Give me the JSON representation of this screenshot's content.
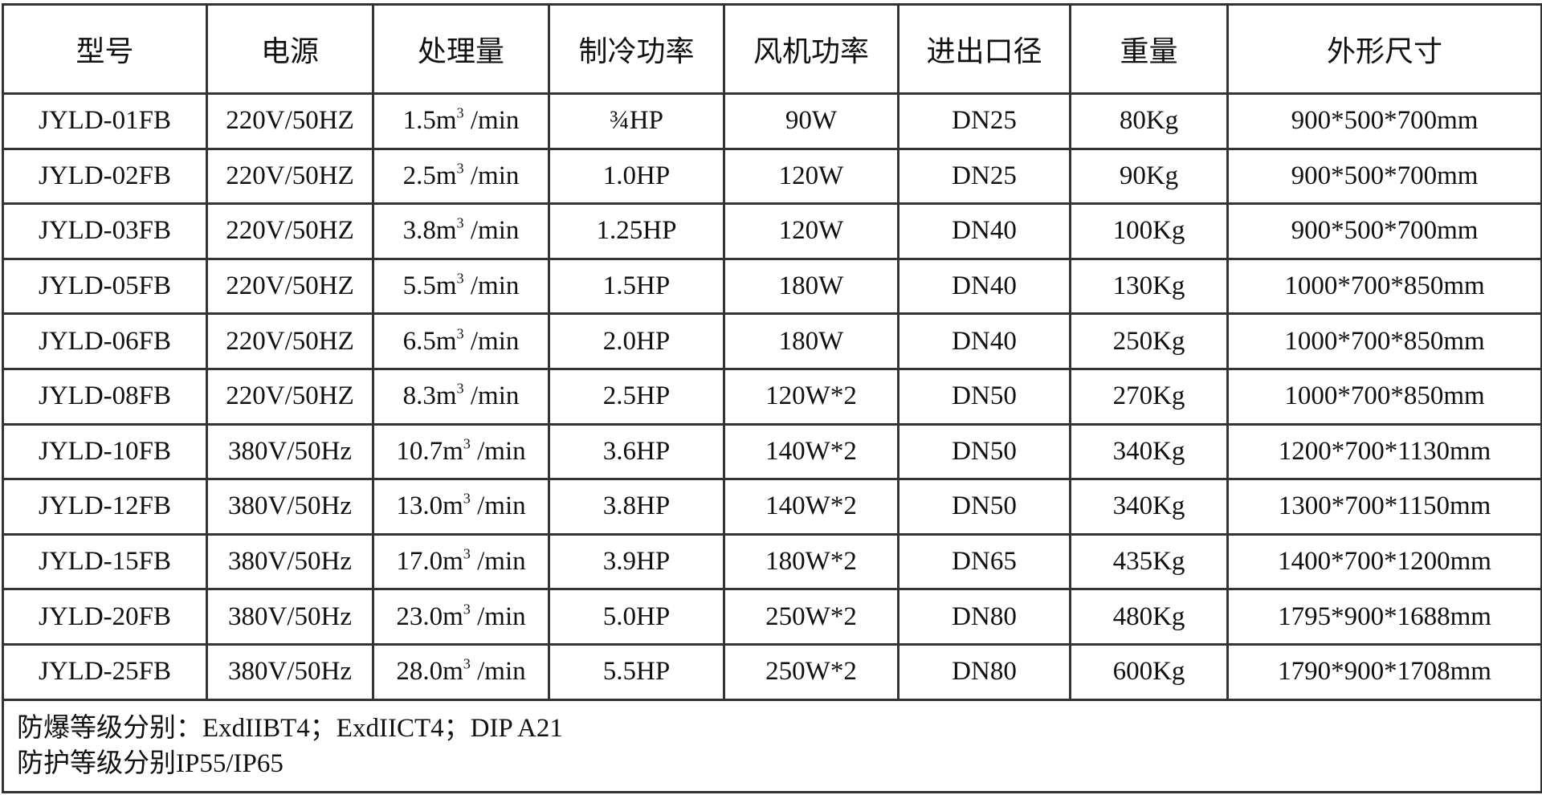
{
  "table": {
    "headers": [
      "型号",
      "电源",
      "处理量",
      "制冷功率",
      "风机功率",
      "进出口径",
      "重量",
      "外形尺寸"
    ],
    "rows": [
      [
        "JYLD-01FB",
        "220V/50HZ",
        "1.5m³/min",
        "¾HP",
        "90W",
        "DN25",
        "80Kg",
        "900*500*700mm"
      ],
      [
        "JYLD-02FB",
        "220V/50HZ",
        "2.5m³/min",
        "1.0HP",
        "120W",
        "DN25",
        "90Kg",
        "900*500*700mm"
      ],
      [
        "JYLD-03FB",
        "220V/50HZ",
        "3.8m³/min",
        "1.25HP",
        "120W",
        "DN40",
        "100Kg",
        "900*500*700mm"
      ],
      [
        "JYLD-05FB",
        "220V/50HZ",
        "5.5m³/min",
        "1.5HP",
        "180W",
        "DN40",
        "130Kg",
        "1000*700*850mm"
      ],
      [
        "JYLD-06FB",
        "220V/50HZ",
        "6.5m³/min",
        "2.0HP",
        "180W",
        "DN40",
        "250Kg",
        "1000*700*850mm"
      ],
      [
        "JYLD-08FB",
        "220V/50HZ",
        "8.3m³/min",
        "2.5HP",
        "120W*2",
        "DN50",
        "270Kg",
        "1000*700*850mm"
      ],
      [
        "JYLD-10FB",
        "380V/50Hz",
        "10.7m³/min",
        "3.6HP",
        "140W*2",
        "DN50",
        "340Kg",
        "1200*700*1130mm"
      ],
      [
        "JYLD-12FB",
        "380V/50Hz",
        "13.0m³/min",
        "3.8HP",
        "140W*2",
        "DN50",
        "340Kg",
        "1300*700*1150mm"
      ],
      [
        "JYLD-15FB",
        "380V/50Hz",
        "17.0m³/min",
        "3.9HP",
        "180W*2",
        "DN65",
        "435Kg",
        "1400*700*1200mm"
      ],
      [
        "JYLD-20FB",
        "380V/50Hz",
        "23.0m³/min",
        "5.0HP",
        "250W*2",
        "DN80",
        "480Kg",
        "1795*900*1688mm"
      ],
      [
        "JYLD-25FB",
        "380V/50Hz",
        "28.0m³/min",
        "5.5HP",
        "250W*2",
        "DN80",
        "600Kg",
        "1790*900*1708mm"
      ]
    ],
    "notes": [
      "防爆等级分别：ExdIIBT4；ExdIICT4；DIP A21",
      "防护等级分别IP55/IP65"
    ]
  }
}
